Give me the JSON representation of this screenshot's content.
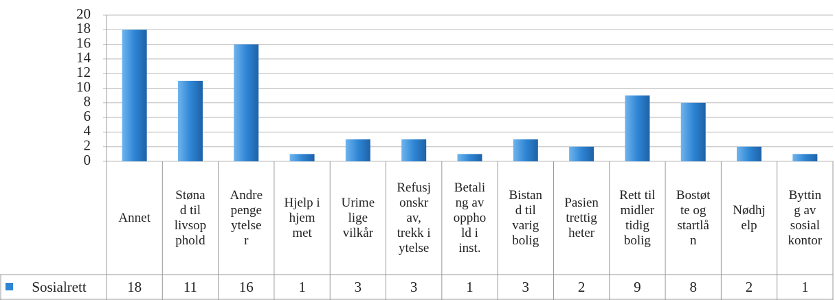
{
  "chart_data": {
    "type": "bar",
    "categories": [
      "Annet",
      "Støna\nd til\nlivsop\nphold",
      "Andre\npenge\nytelse\nr",
      "Hjelp i\nhjem\nmet",
      "Urime\nlige\nvilkår",
      "Refusj\nonskr\nav,\ntrekk i\nytelse",
      "Betali\nng av\noppho\nld i\ninst.",
      "Bistan\nd til\nvarig\nbolig",
      "Pasien\ntrettig\nheter",
      "Rett til\nmidler\ntidig\nbolig",
      "Bostøt\nte og\nstartlå\nn",
      "Nødhj\nelp",
      "Byttin\ng av\nsosial\nkontor"
    ],
    "series": [
      {
        "name": "Sosialrett",
        "color": "#2f86d4",
        "values": [
          18,
          11,
          16,
          1,
          3,
          3,
          1,
          3,
          2,
          9,
          8,
          2,
          1
        ]
      }
    ],
    "ylim": [
      0,
      20
    ],
    "yticks": [
      0,
      2,
      4,
      6,
      8,
      10,
      12,
      14,
      16,
      18,
      20
    ],
    "grid": true
  }
}
